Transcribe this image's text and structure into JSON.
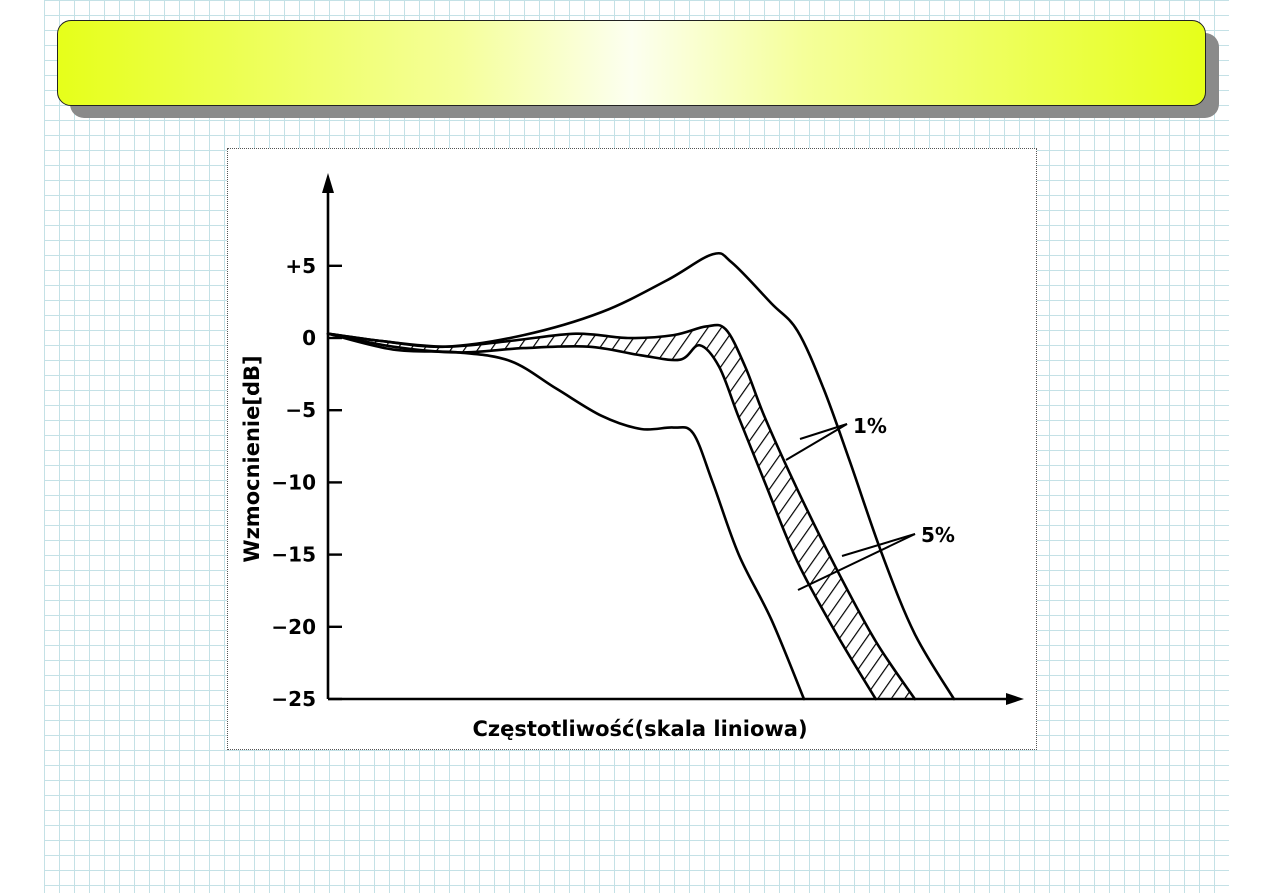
{
  "slide": {
    "title": ""
  },
  "chart_data": {
    "type": "line",
    "title": "",
    "xlabel": "Częstotliwość(skala liniowa)",
    "ylabel": "Wzmocnienie[dB]",
    "ylim": [
      -25,
      9
    ],
    "xlim": [
      0,
      100
    ],
    "x_scale": "linear",
    "yticks": [
      {
        "value": 5,
        "label": "+5"
      },
      {
        "value": 0,
        "label": "0"
      },
      {
        "value": -5,
        "label": "−5"
      },
      {
        "value": -10,
        "label": "−10"
      },
      {
        "value": -15,
        "label": "−15"
      },
      {
        "value": -20,
        "label": "−20"
      },
      {
        "value": -25,
        "label": "−25"
      }
    ],
    "grid": false,
    "series": [
      {
        "name": "",
        "points": [
          [
            0,
            0.3
          ],
          [
            8,
            -0.2
          ],
          [
            18,
            -0.6
          ],
          [
            30,
            0.2
          ],
          [
            42,
            1.8
          ],
          [
            52,
            4.0
          ],
          [
            59,
            5.8
          ],
          [
            62,
            5.2
          ],
          [
            68,
            2.4
          ],
          [
            72,
            0.5
          ],
          [
            76,
            -3.5
          ],
          [
            80,
            -8.5
          ],
          [
            85,
            -15
          ],
          [
            90,
            -20.5
          ],
          [
            96,
            -25
          ]
        ]
      },
      {
        "name": "",
        "points": [
          [
            0,
            0.3
          ],
          [
            8,
            -0.2
          ],
          [
            18,
            -0.6
          ],
          [
            28,
            -0.2
          ],
          [
            38,
            0.3
          ],
          [
            46,
            0.0
          ],
          [
            53,
            0.2
          ],
          [
            58,
            0.8
          ],
          [
            61,
            0.6
          ],
          [
            64,
            -2
          ],
          [
            67,
            -5.5
          ],
          [
            72,
            -10.5
          ],
          [
            78,
            -16
          ],
          [
            84,
            -21
          ],
          [
            90,
            -25
          ]
        ]
      },
      {
        "name": "",
        "points": [
          [
            0,
            0.3
          ],
          [
            10,
            -0.6
          ],
          [
            20,
            -1.0
          ],
          [
            30,
            -0.7
          ],
          [
            40,
            -0.6
          ],
          [
            48,
            -1.2
          ],
          [
            54,
            -1.5
          ],
          [
            57,
            -0.5
          ],
          [
            60,
            -2
          ],
          [
            63,
            -5.5
          ],
          [
            67,
            -10
          ],
          [
            72,
            -15.5
          ],
          [
            78,
            -20.5
          ],
          [
            84,
            -25
          ]
        ]
      },
      {
        "name": "",
        "points": [
          [
            0,
            0.3
          ],
          [
            10,
            -0.8
          ],
          [
            20,
            -1.0
          ],
          [
            28,
            -1.6
          ],
          [
            35,
            -3.5
          ],
          [
            42,
            -5.4
          ],
          [
            48,
            -6.3
          ],
          [
            53,
            -6.2
          ],
          [
            56,
            -6.6
          ],
          [
            59,
            -10
          ],
          [
            63,
            -15
          ],
          [
            68,
            -19.5
          ],
          [
            73,
            -25
          ]
        ]
      }
    ],
    "hatched_band_between_series": [
      1,
      2
    ],
    "annotations": [
      {
        "text": "1%",
        "points_to_series": [
          0,
          1
        ]
      },
      {
        "text": "5%",
        "points_to_series": [
          0,
          3
        ]
      }
    ]
  }
}
